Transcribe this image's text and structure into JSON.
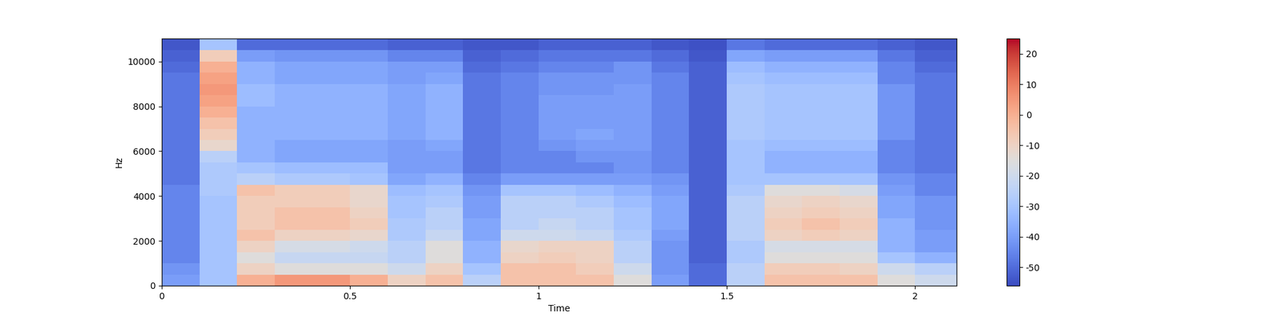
{
  "chart_data": {
    "type": "heatmap",
    "xlabel": "Time",
    "ylabel": "Hz",
    "xlim": [
      0,
      2.11
    ],
    "xticks": [
      0,
      0.5,
      1,
      1.5,
      2
    ],
    "ylim": [
      0,
      11025
    ],
    "yticks": [
      0,
      2000,
      4000,
      6000,
      8000,
      10000
    ],
    "grid": false,
    "x_edges": [
      0,
      0.1,
      0.2,
      0.3,
      0.4,
      0.5,
      0.6,
      0.7,
      0.8,
      0.9,
      1.0,
      1.1,
      1.2,
      1.3,
      1.4,
      1.5,
      1.6,
      1.7,
      1.8,
      1.9,
      2.0,
      2.11
    ],
    "y_edges": [
      0,
      500,
      1000,
      1500,
      2000,
      2500,
      3000,
      3500,
      4000,
      4500,
      5000,
      5500,
      6000,
      6500,
      7000,
      7500,
      8000,
      8500,
      9000,
      9500,
      10000,
      10500,
      11025
    ],
    "cells": [
      [
        -40,
        -30,
        0,
        5,
        5,
        0,
        -10,
        -5,
        -25,
        -5,
        -5,
        -5,
        -15,
        -40,
        -50,
        -25,
        -5,
        -5,
        -5,
        -15,
        -20
      ],
      [
        -42,
        -30,
        -10,
        -15,
        -15,
        -15,
        -20,
        -10,
        -30,
        -5,
        -5,
        -8,
        -20,
        -42,
        -50,
        -25,
        -8,
        -8,
        -10,
        -20,
        -25
      ],
      [
        -45,
        -30,
        -15,
        -22,
        -22,
        -22,
        -25,
        -15,
        -35,
        -10,
        -8,
        -10,
        -25,
        -42,
        -52,
        -28,
        -15,
        -15,
        -15,
        -30,
        -35
      ],
      [
        -45,
        -30,
        -10,
        -18,
        -18,
        -20,
        -25,
        -15,
        -35,
        -12,
        -10,
        -10,
        -25,
        -42,
        -52,
        -28,
        -18,
        -18,
        -18,
        -35,
        -40
      ],
      [
        -45,
        -30,
        -5,
        -10,
        -10,
        -12,
        -28,
        -22,
        -38,
        -20,
        -20,
        -22,
        -28,
        -40,
        -52,
        -25,
        -10,
        -8,
        -10,
        -35,
        -40
      ],
      [
        -45,
        -30,
        -8,
        -5,
        -5,
        -8,
        -28,
        -25,
        -38,
        -25,
        -22,
        -25,
        -30,
        -38,
        -52,
        -25,
        -8,
        -5,
        -8,
        -35,
        -42
      ],
      [
        -45,
        -30,
        -8,
        -5,
        -5,
        -10,
        -30,
        -25,
        -40,
        -25,
        -25,
        -25,
        -30,
        -38,
        -52,
        -25,
        -10,
        -8,
        -10,
        -38,
        -42
      ],
      [
        -45,
        -30,
        -8,
        -8,
        -8,
        -12,
        -30,
        -28,
        -40,
        -25,
        -25,
        -28,
        -32,
        -38,
        -52,
        -25,
        -12,
        -10,
        -12,
        -38,
        -42
      ],
      [
        -45,
        -28,
        -5,
        -8,
        -8,
        -12,
        -32,
        -30,
        -42,
        -30,
        -30,
        -32,
        -35,
        -40,
        -52,
        -28,
        -15,
        -15,
        -18,
        -40,
        -45
      ],
      [
        -48,
        -28,
        -25,
        -28,
        -28,
        -30,
        -38,
        -35,
        -45,
        -40,
        -40,
        -40,
        -40,
        -42,
        -52,
        -30,
        -30,
        -30,
        -30,
        -42,
        -45
      ],
      [
        -48,
        -28,
        -30,
        -32,
        -32,
        -32,
        -40,
        -40,
        -48,
        -45,
        -45,
        -45,
        -42,
        -45,
        -52,
        -30,
        -35,
        -35,
        -35,
        -45,
        -48
      ],
      [
        -48,
        -25,
        -35,
        -38,
        -38,
        -38,
        -40,
        -40,
        -48,
        -45,
        -45,
        -42,
        -42,
        -45,
        -52,
        -30,
        -35,
        -35,
        -35,
        -45,
        -48
      ],
      [
        -48,
        -12,
        -35,
        -38,
        -38,
        -38,
        -40,
        -38,
        -48,
        -45,
        -42,
        -40,
        -40,
        -45,
        -52,
        -30,
        -32,
        -32,
        -32,
        -45,
        -48
      ],
      [
        -48,
        -8,
        -35,
        -35,
        -35,
        -35,
        -38,
        -35,
        -48,
        -45,
        -40,
        -38,
        -40,
        -45,
        -52,
        -28,
        -30,
        -30,
        -30,
        -42,
        -48
      ],
      [
        -48,
        -5,
        -35,
        -35,
        -35,
        -35,
        -38,
        -35,
        -48,
        -45,
        -40,
        -40,
        -40,
        -45,
        -52,
        -28,
        -30,
        -30,
        -30,
        -42,
        -48
      ],
      [
        -48,
        0,
        -35,
        -35,
        -35,
        -35,
        -38,
        -35,
        -48,
        -45,
        -40,
        -40,
        -40,
        -45,
        -52,
        -28,
        -30,
        -30,
        -30,
        -42,
        -48
      ],
      [
        -48,
        3,
        -32,
        -35,
        -35,
        -35,
        -38,
        -35,
        -48,
        -45,
        -40,
        -40,
        -40,
        -45,
        -52,
        -28,
        -30,
        -30,
        -30,
        -42,
        -48
      ],
      [
        -48,
        5,
        -32,
        -35,
        -35,
        -35,
        -38,
        -35,
        -48,
        -45,
        -42,
        -42,
        -40,
        -45,
        -52,
        -28,
        -30,
        -30,
        -30,
        -42,
        -48
      ],
      [
        -48,
        3,
        -35,
        -38,
        -38,
        -38,
        -40,
        -38,
        -48,
        -45,
        -42,
        -42,
        -42,
        -45,
        -52,
        -30,
        -32,
        -32,
        -32,
        -45,
        -48
      ],
      [
        -50,
        0,
        -35,
        -38,
        -38,
        -38,
        -40,
        -40,
        -50,
        -48,
        -45,
        -45,
        -42,
        -48,
        -52,
        -32,
        -35,
        -35,
        -35,
        -45,
        -50
      ],
      [
        -52,
        -8,
        -40,
        -42,
        -42,
        -42,
        -45,
        -45,
        -52,
        -50,
        -48,
        -48,
        -48,
        -50,
        -54,
        -38,
        -40,
        -40,
        -40,
        -48,
        -52
      ],
      [
        -54,
        -30,
        -50,
        -50,
        -50,
        -50,
        -52,
        -52,
        -54,
        -54,
        -52,
        -52,
        -52,
        -54,
        -55,
        -48,
        -50,
        -50,
        -50,
        -52,
        -54
      ]
    ],
    "clim": [
      -56,
      25
    ],
    "colorbar_ticks": [
      -50,
      -40,
      -30,
      -20,
      -10,
      0,
      10,
      20
    ]
  }
}
